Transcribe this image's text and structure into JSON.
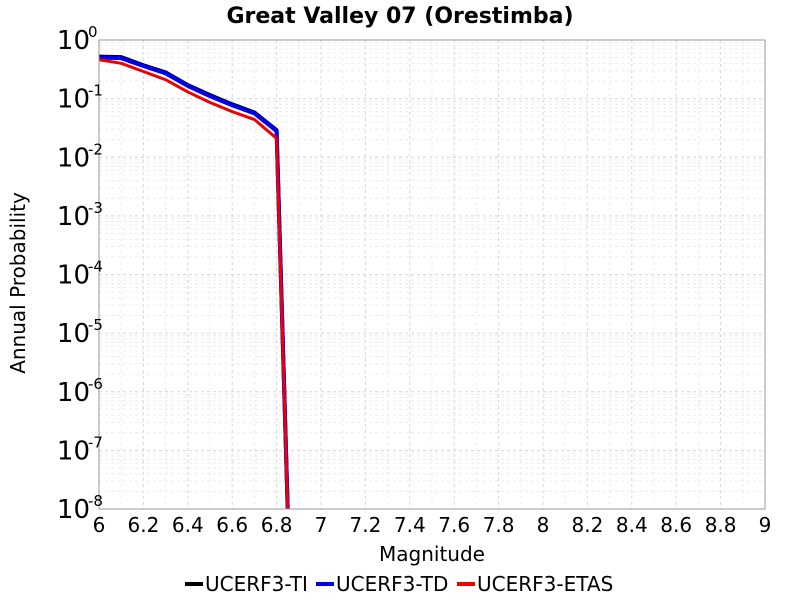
{
  "chart_data": {
    "type": "line",
    "title": "Great Valley 07 (Orestimba)",
    "xlabel": "Magnitude",
    "ylabel": "Annual Probability",
    "xlim": [
      6,
      9
    ],
    "ylim": [
      1e-08,
      1
    ],
    "yscale": "log",
    "grid": true,
    "legend_position": "bottom",
    "x_ticks": [
      "6",
      "6.2",
      "6.4",
      "6.6",
      "6.8",
      "7",
      "7.2",
      "7.4",
      "7.6",
      "7.8",
      "8",
      "8.2",
      "8.4",
      "8.6",
      "8.8",
      "9"
    ],
    "y_ticks": [
      {
        "base": "10",
        "exp": "0"
      },
      {
        "base": "10",
        "exp": "-1"
      },
      {
        "base": "10",
        "exp": "-2"
      },
      {
        "base": "10",
        "exp": "-3"
      },
      {
        "base": "10",
        "exp": "-4"
      },
      {
        "base": "10",
        "exp": "-5"
      },
      {
        "base": "10",
        "exp": "-6"
      },
      {
        "base": "10",
        "exp": "-7"
      },
      {
        "base": "10",
        "exp": "-8"
      }
    ],
    "series": [
      {
        "name": "UCERF3-TI",
        "color": "#000000",
        "x": [
          6.0,
          6.1,
          6.2,
          6.3,
          6.4,
          6.5,
          6.6,
          6.7,
          6.8,
          6.85
        ],
        "y": [
          0.52,
          0.51,
          0.37,
          0.28,
          0.17,
          0.115,
          0.08,
          0.058,
          0.029,
          1e-08
        ]
      },
      {
        "name": "UCERF3-TD",
        "color": "#0000ee",
        "x": [
          6.0,
          6.1,
          6.2,
          6.3,
          6.4,
          6.5,
          6.6,
          6.7,
          6.8,
          6.85
        ],
        "y": [
          0.5,
          0.49,
          0.36,
          0.27,
          0.165,
          0.11,
          0.077,
          0.056,
          0.028,
          1e-08
        ]
      },
      {
        "name": "UCERF3-ETAS",
        "color": "#ee0000",
        "x": [
          6.0,
          6.1,
          6.2,
          6.3,
          6.4,
          6.5,
          6.6,
          6.7,
          6.8,
          6.85
        ],
        "y": [
          0.46,
          0.4,
          0.29,
          0.21,
          0.13,
          0.086,
          0.06,
          0.044,
          0.021,
          1e-08
        ]
      }
    ]
  }
}
